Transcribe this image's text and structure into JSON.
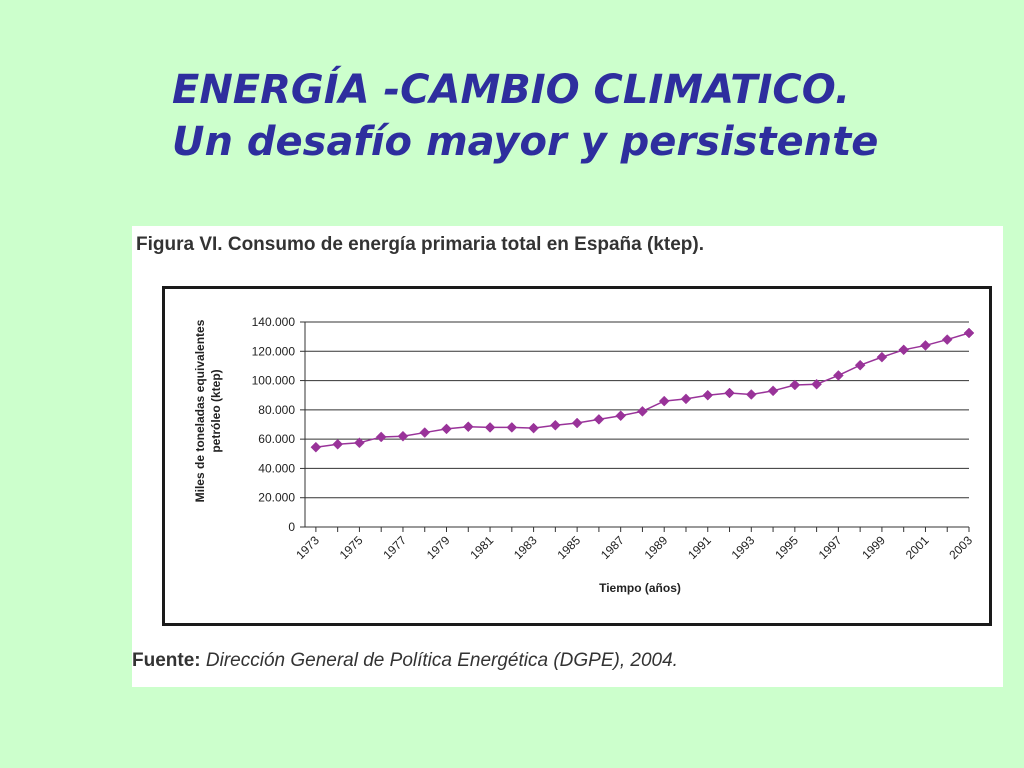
{
  "slide": {
    "title_line1": "ENERGÍA -CAMBIO CLIMATICO.",
    "title_line2": "Un desafío mayor y persistente"
  },
  "figure": {
    "caption": "Figura VI. Consumo de energía primaria total en España (ktep).",
    "source_label": "Fuente:",
    "source_text": "Dirección General de Política Energética (DGPE), 2004."
  },
  "colors": {
    "background": "#ccffcc",
    "title": "#2e2e9e",
    "series": "#993399"
  },
  "chart_data": {
    "type": "line",
    "title": "",
    "xlabel": "Tiempo (años)",
    "ylabel_line1": "Miles de toneladas equivalentes",
    "ylabel_line2": "petróleo (ktep)",
    "ylim": [
      0,
      140000
    ],
    "yticks": [
      0,
      20000,
      40000,
      60000,
      80000,
      100000,
      120000,
      140000
    ],
    "ytick_labels": [
      "0",
      "20.000",
      "40.000",
      "60.000",
      "80.000",
      "100.000",
      "120.000",
      "140.000"
    ],
    "xtick_labels": [
      "1973",
      "1975",
      "1977",
      "1979",
      "1981",
      "1983",
      "1985",
      "1987",
      "1989",
      "1991",
      "1993",
      "1995",
      "1997",
      "1999",
      "2001",
      "2003"
    ],
    "grid": true,
    "legend": "none",
    "series": [
      {
        "x": [
          1973,
          1974,
          1975,
          1976,
          1977,
          1978,
          1979,
          1980,
          1981,
          1982,
          1983,
          1984,
          1985,
          1986,
          1987,
          1988,
          1989,
          1990,
          1991,
          1992,
          1993,
          1994,
          1995,
          1996,
          1997,
          1998,
          1999,
          2000,
          2001,
          2002,
          2003
        ],
        "values": [
          54500,
          56500,
          57500,
          61500,
          62000,
          64500,
          67000,
          68500,
          68000,
          68000,
          67500,
          69500,
          71000,
          73500,
          76000,
          79000,
          86000,
          87500,
          90000,
          91500,
          90500,
          93000,
          97000,
          97500,
          103500,
          110500,
          116000,
          121000,
          124000,
          128000,
          132500
        ]
      }
    ]
  }
}
